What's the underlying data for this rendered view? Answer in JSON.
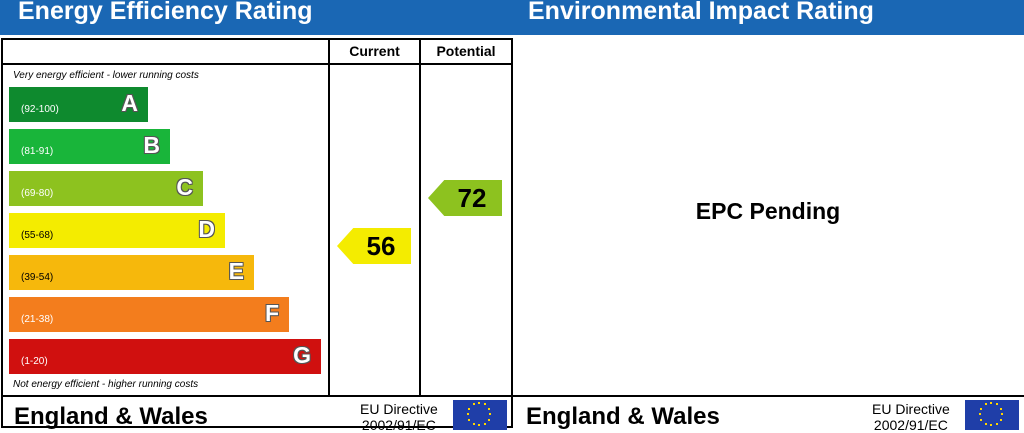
{
  "energy": {
    "title": "Energy Efficiency Rating",
    "col_current": "Current",
    "col_potential": "Potential",
    "top_note": "Very energy efficient - lower running costs",
    "bottom_note": "Not energy efficient - higher running costs",
    "bands": [
      {
        "range": "(92-100)",
        "letter": "A",
        "color": "#0e8a2e"
      },
      {
        "range": "(81-91)",
        "letter": "B",
        "color": "#19b53a"
      },
      {
        "range": "(69-80)",
        "letter": "C",
        "color": "#8dc21f"
      },
      {
        "range": "(55-68)",
        "letter": "D",
        "color": "#f4ec00"
      },
      {
        "range": "(39-54)",
        "letter": "E",
        "color": "#f6b80c"
      },
      {
        "range": "(21-38)",
        "letter": "F",
        "color": "#f37d1d"
      },
      {
        "range": "(1-20)",
        "letter": "G",
        "color": "#d0100f"
      }
    ],
    "current": {
      "value": "56",
      "band": "D",
      "color": "#f4ec00"
    },
    "potential": {
      "value": "72",
      "band": "C",
      "color": "#8dc21f"
    }
  },
  "environmental": {
    "title": "Environmental Impact Rating",
    "status": "EPC Pending"
  },
  "footer": {
    "region": "England & Wales",
    "directive_line1": "EU Directive",
    "directive_line2": "2002/91/EC"
  },
  "chart_data": {
    "type": "bar",
    "title": "Energy Efficiency Rating",
    "categories": [
      "A",
      "B",
      "C",
      "D",
      "E",
      "F",
      "G"
    ],
    "ranges": [
      "92-100",
      "81-91",
      "69-80",
      "55-68",
      "39-54",
      "21-38",
      "1-20"
    ],
    "current": 56,
    "potential": 72
  }
}
